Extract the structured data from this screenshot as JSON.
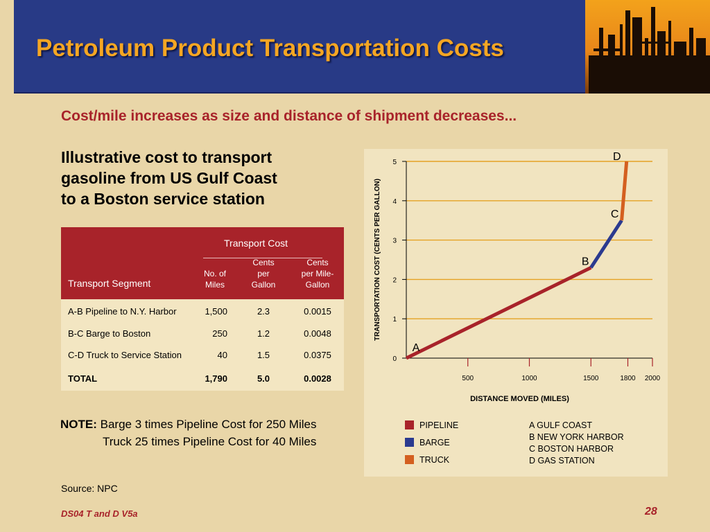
{
  "header": {
    "title": "Petroleum Product Transportation Costs"
  },
  "subtitle": "Cost/mile increases as size and distance of shipment decreases...",
  "intro": [
    "Illustrative cost to transport",
    "gasoline from US Gulf Coast",
    "to a Boston service station"
  ],
  "table": {
    "group_header": "Transport Cost",
    "headers": {
      "segment": "Transport Segment",
      "miles": [
        "No. of",
        "Miles"
      ],
      "cents_gallon": [
        "Cents",
        "per",
        "Gallon"
      ],
      "cents_mile_gallon": [
        "Cents",
        "per Mile-",
        "Gallon"
      ]
    },
    "rows": [
      {
        "segment": "A-B  Pipeline to N.Y. Harbor",
        "miles": "1,500",
        "cpg": "2.3",
        "cpmg": "0.0015"
      },
      {
        "segment": "B-C  Barge to Boston",
        "miles": "250",
        "cpg": "1.2",
        "cpmg": "0.0048"
      },
      {
        "segment": "C-D  Truck to Service Station",
        "miles": "40",
        "cpg": "1.5",
        "cpmg": "0.0375"
      }
    ],
    "total": {
      "segment": "TOTAL",
      "miles": "1,790",
      "cpg": "5.0",
      "cpmg": "0.0028"
    }
  },
  "note": {
    "label": "NOTE",
    "colon": ":",
    "lines": [
      "Barge 3 times Pipeline Cost for 250 Miles",
      "Truck 25 times Pipeline Cost for 40 Miles"
    ]
  },
  "source": "Source: NPC",
  "footer": {
    "left": "DS04 T and D V5a",
    "page": "28"
  },
  "colors": {
    "pipeline": "#a8232a",
    "barge": "#2b3a8f",
    "truck": "#d45f1f",
    "title": "#f5a623",
    "accent": "#a8232a"
  },
  "chart_data": {
    "type": "line",
    "xlabel": "DISTANCE MOVED (MILES)",
    "ylabel": "TRANSPORTATION COST (CENTS PER GALLON)",
    "xlim": [
      0,
      2000
    ],
    "ylim": [
      0,
      5
    ],
    "xticks": [
      500,
      1000,
      1500,
      1800,
      2000
    ],
    "yticks": [
      0,
      1,
      2,
      3,
      4,
      5
    ],
    "grid": "horizontal",
    "series": [
      {
        "name": "PIPELINE",
        "color": "#a8232a",
        "x": [
          0,
          1500
        ],
        "y": [
          0,
          2.3
        ]
      },
      {
        "name": "BARGE",
        "color": "#2b3a8f",
        "x": [
          1500,
          1750
        ],
        "y": [
          2.3,
          3.5
        ]
      },
      {
        "name": "TRUCK",
        "color": "#d45f1f",
        "x": [
          1750,
          1790
        ],
        "y": [
          3.5,
          5.0
        ]
      }
    ],
    "points": [
      {
        "label": "A",
        "x": 0,
        "y": 0
      },
      {
        "label": "B",
        "x": 1500,
        "y": 2.3
      },
      {
        "label": "C",
        "x": 1750,
        "y": 3.5
      },
      {
        "label": "D",
        "x": 1790,
        "y": 5.0
      }
    ],
    "legend": {
      "placement": "bottom",
      "series": [
        "PIPELINE",
        "BARGE",
        "TRUCK"
      ],
      "points": [
        "A GULF COAST",
        "B NEW YORK HARBOR",
        "C BOSTON HARBOR",
        "D GAS STATION"
      ]
    }
  }
}
